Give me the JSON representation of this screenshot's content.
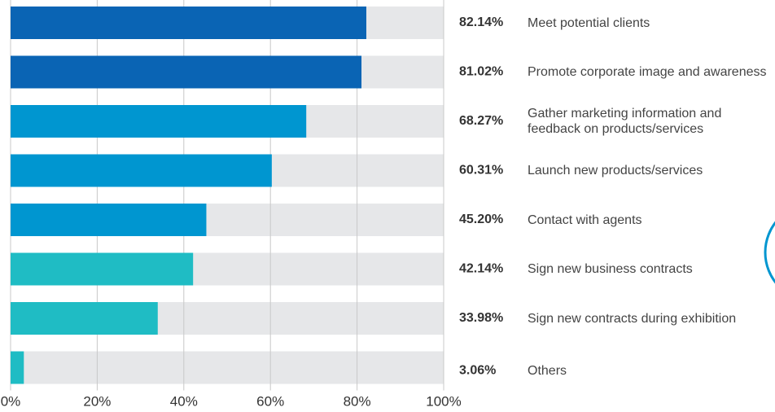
{
  "chart_data": {
    "type": "bar",
    "orientation": "horizontal",
    "categories": [
      "Meet potential clients",
      "Promote corporate image and awareness",
      "Gather marketing information and\nfeedback on products/services",
      "Launch new products/services",
      "Contact with agents",
      "Sign new business contracts",
      "Sign new contracts during exhibition",
      "Others"
    ],
    "values": [
      82.14,
      81.02,
      68.27,
      60.31,
      45.2,
      42.14,
      33.98,
      3.06
    ],
    "value_labels": [
      "82.14%",
      "81.02%",
      "68.27%",
      "60.31%",
      "45.20%",
      "42.14%",
      "33.98%",
      "3.06%"
    ],
    "colors": [
      "#0a64b4",
      "#0a64b4",
      "#0096d0",
      "#0096d0",
      "#0096d0",
      "#1fbcc4",
      "#1fbcc4",
      "#1fbcc4"
    ],
    "track_color": "#e6e7e9",
    "xlim": [
      0,
      100
    ],
    "xticks": [
      {
        "value": 0,
        "label": "0%"
      },
      {
        "value": 20,
        "label": "20%"
      },
      {
        "value": 40,
        "label": "40%"
      },
      {
        "value": 60,
        "label": "60%"
      },
      {
        "value": 80,
        "label": "80%"
      },
      {
        "value": 100,
        "label": "100%"
      }
    ],
    "grid": true
  }
}
